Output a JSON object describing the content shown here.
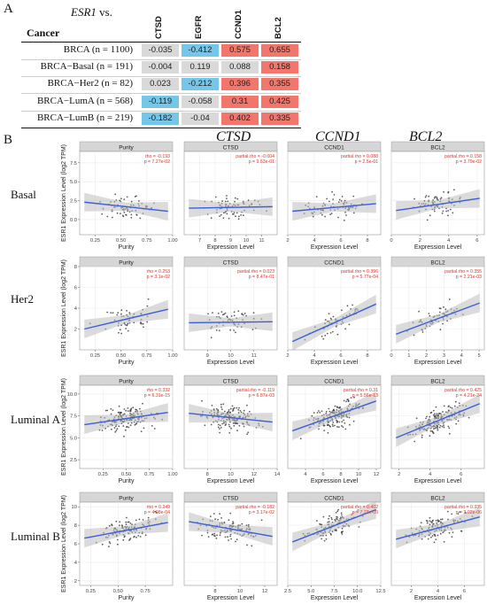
{
  "panel_labels": {
    "a": "A",
    "b": "B"
  },
  "table": {
    "esr_label": "ESR1 vs.",
    "cancer_header": "Cancer",
    "columns": [
      "CTSD",
      "EGFR",
      "CCND1",
      "BCL2"
    ],
    "rows": [
      {
        "label": "BRCA (n = 1100)",
        "values": [
          -0.035,
          -0.412,
          0.575,
          0.655
        ]
      },
      {
        "label": "BRCA−Basal (n = 191)",
        "values": [
          -0.004,
          0.119,
          0.088,
          0.158
        ]
      },
      {
        "label": "BRCA−Her2 (n = 82)",
        "values": [
          0.023,
          -0.212,
          0.396,
          0.355
        ]
      },
      {
        "label": "BRCA−LumA (n = 568)",
        "values": [
          -0.119,
          -0.058,
          0.31,
          0.425
        ]
      },
      {
        "label": "BRCA−LumB (n = 219)",
        "values": [
          -0.182,
          -0.04,
          0.402,
          0.335
        ]
      }
    ],
    "colors": {
      "positive": "#f2766b",
      "negative": "#74c7e8",
      "neutral": "#d9d9d9"
    }
  },
  "panelB": {
    "column_titles": [
      "CTSD",
      "CCND1",
      "BCL2"
    ],
    "facet_labels": [
      "Purity",
      "CTSD",
      "CCND1",
      "BCL2"
    ],
    "row_titles": [
      "Basal",
      "Her2",
      "Luminal A",
      "Luminal B"
    ],
    "ylabel": "ESR1 Expression Level (log2 TPM)",
    "xlabels": [
      "Purity",
      "Expression Level",
      "Expression Level",
      "Expression Level"
    ],
    "colors": {
      "fit": "#3b5ed9",
      "stat": "#e8342a",
      "strip": "#d6d6d6",
      "point": "#333333",
      "band": "#bdbdbd"
    }
  },
  "chart_data": {
    "type": "scatter",
    "subplots": [
      {
        "row": "Basal",
        "col": "Purity",
        "stat": [
          "rho = -0.193",
          "p = 7.27e-02"
        ],
        "xlim": [
          0.1,
          1.0
        ],
        "ylim": [
          -2,
          9
        ],
        "xticks": [
          "0.25",
          "0.50",
          "0.75",
          "1.00"
        ],
        "yticks": [
          "0.0",
          "2.5",
          "5.0",
          "7.5"
        ],
        "fit": [
          2.3,
          1.1
        ]
      },
      {
        "row": "Basal",
        "col": "CTSD",
        "stat": [
          "partial.rho = -0.004",
          "p = 9.63e-01"
        ],
        "xlim": [
          6,
          12
        ],
        "ylim": [
          -2,
          9
        ],
        "xticks": [
          "7",
          "8",
          "9",
          "10",
          "11"
        ],
        "yticks": [],
        "fit": [
          1.5,
          1.7
        ]
      },
      {
        "row": "Basal",
        "col": "CCND1",
        "stat": [
          "partial.rho = 0.088",
          "p = 2.5e-01"
        ],
        "xlim": [
          2,
          9
        ],
        "ylim": [
          -2,
          9
        ],
        "xticks": [
          "2",
          "4",
          "6",
          "8"
        ],
        "yticks": [],
        "fit": [
          1.1,
          2.1
        ]
      },
      {
        "row": "Basal",
        "col": "BCL2",
        "stat": [
          "partial.rho = 0.158",
          "p = 3.79e-02"
        ],
        "xlim": [
          0,
          6.5
        ],
        "ylim": [
          -2,
          9
        ],
        "xticks": [
          "0",
          "2",
          "4",
          "6"
        ],
        "yticks": [],
        "fit": [
          1.2,
          2.8
        ]
      },
      {
        "row": "Her2",
        "col": "Purity",
        "stat": [
          "rho = 0.253",
          "p = 3.1e-02"
        ],
        "xlim": [
          0.1,
          1.0
        ],
        "ylim": [
          0,
          8
        ],
        "xticks": [
          "0.25",
          "0.50",
          "0.75",
          "1.00"
        ],
        "yticks": [
          "2",
          "4",
          "6",
          "8"
        ],
        "fit": [
          2.0,
          3.9
        ]
      },
      {
        "row": "Her2",
        "col": "CTSD",
        "stat": [
          "partial.rho = 0.023",
          "p = 8.47e-01"
        ],
        "xlim": [
          8,
          12
        ],
        "ylim": [
          0,
          8
        ],
        "xticks": [
          "9",
          "10",
          "11"
        ],
        "yticks": [],
        "fit": [
          2.6,
          2.7
        ]
      },
      {
        "row": "Her2",
        "col": "CCND1",
        "stat": [
          "partial.rho = 0.396",
          "p = 5.77e-04"
        ],
        "xlim": [
          2,
          9
        ],
        "ylim": [
          0,
          8
        ],
        "xticks": [
          "2",
          "4",
          "6",
          "8"
        ],
        "yticks": [],
        "fit": [
          0.8,
          4.4
        ]
      },
      {
        "row": "Her2",
        "col": "BCL2",
        "stat": [
          "partial.rho = 0.355",
          "p = 2.21e-03"
        ],
        "xlim": [
          0,
          5.3
        ],
        "ylim": [
          0,
          8
        ],
        "xticks": [
          "0",
          "1",
          "2",
          "3",
          "4",
          "5"
        ],
        "yticks": [],
        "fit": [
          1.5,
          4.5
        ]
      },
      {
        "row": "Luminal A",
        "col": "Purity",
        "stat": [
          "rho = 0.332",
          "p = 6.31e-15"
        ],
        "xlim": [
          0,
          1.0
        ],
        "ylim": [
          1.5,
          11
        ],
        "xticks": [
          "0.25",
          "0.50",
          "0.75",
          "1.00"
        ],
        "yticks": [
          "2.5",
          "5.0",
          "7.5",
          "10.0"
        ],
        "fit": [
          6.5,
          7.9
        ]
      },
      {
        "row": "Luminal A",
        "col": "CTSD",
        "stat": [
          "partial.rho = -0.119",
          "p = 6.87e-03"
        ],
        "xlim": [
          6,
          14
        ],
        "ylim": [
          1.5,
          11
        ],
        "xticks": [
          "8",
          "10",
          "12",
          "14"
        ],
        "yticks": [],
        "fit": [
          7.8,
          6.8
        ]
      },
      {
        "row": "Luminal A",
        "col": "CCND1",
        "stat": [
          "partial.rho = 0.31",
          "p = 5.56e-13"
        ],
        "xlim": [
          2,
          12.5
        ],
        "ylim": [
          1.5,
          11
        ],
        "xticks": [
          "4",
          "6",
          "8",
          "10",
          "12"
        ],
        "yticks": [],
        "fit": [
          5.8,
          9.2
        ]
      },
      {
        "row": "Luminal A",
        "col": "BCL2",
        "stat": [
          "partial.rho = 0.425",
          "p = 4.21e-24"
        ],
        "xlim": [
          1.5,
          7.5
        ],
        "ylim": [
          1.5,
          11
        ],
        "xticks": [
          "2",
          "4",
          "6"
        ],
        "yticks": [],
        "fit": [
          5.0,
          8.9
        ]
      },
      {
        "row": "Luminal B",
        "col": "Purity",
        "stat": [
          "rho = 0.249",
          "p = 4.98e-04"
        ],
        "xlim": [
          0.15,
          1.0
        ],
        "ylim": [
          1.5,
          10.5
        ],
        "xticks": [
          "0.25",
          "0.50",
          "0.75"
        ],
        "yticks": [
          "2",
          "4",
          "6",
          "8",
          "10"
        ],
        "fit": [
          6.6,
          8.3
        ]
      },
      {
        "row": "Luminal B",
        "col": "CTSD",
        "stat": [
          "partial.rho = -0.182",
          "p = 3.17e-02"
        ],
        "xlim": [
          5.5,
          13
        ],
        "ylim": [
          1.5,
          10.5
        ],
        "xticks": [
          "8",
          "10",
          "12"
        ],
        "yticks": [],
        "fit": [
          8.4,
          6.8
        ]
      },
      {
        "row": "Luminal B",
        "col": "CCND1",
        "stat": [
          "partial.rho = 0.402",
          "p = 7.23e-09"
        ],
        "xlim": [
          2.5,
          12.5
        ],
        "ylim": [
          1.5,
          10.5
        ],
        "xticks": [
          "2.5",
          "5.0",
          "7.5",
          "10.0",
          "12.5"
        ],
        "yticks": [],
        "fit": [
          6.2,
          9.7
        ]
      },
      {
        "row": "Luminal B",
        "col": "BCL2",
        "stat": [
          "partial.rho = 0.335",
          "p = 2.02e-06"
        ],
        "xlim": [
          0.5,
          7.5
        ],
        "ylim": [
          1.5,
          10.5
        ],
        "xticks": [
          "2",
          "4",
          "6"
        ],
        "yticks": [],
        "fit": [
          6.5,
          8.9
        ]
      }
    ]
  }
}
